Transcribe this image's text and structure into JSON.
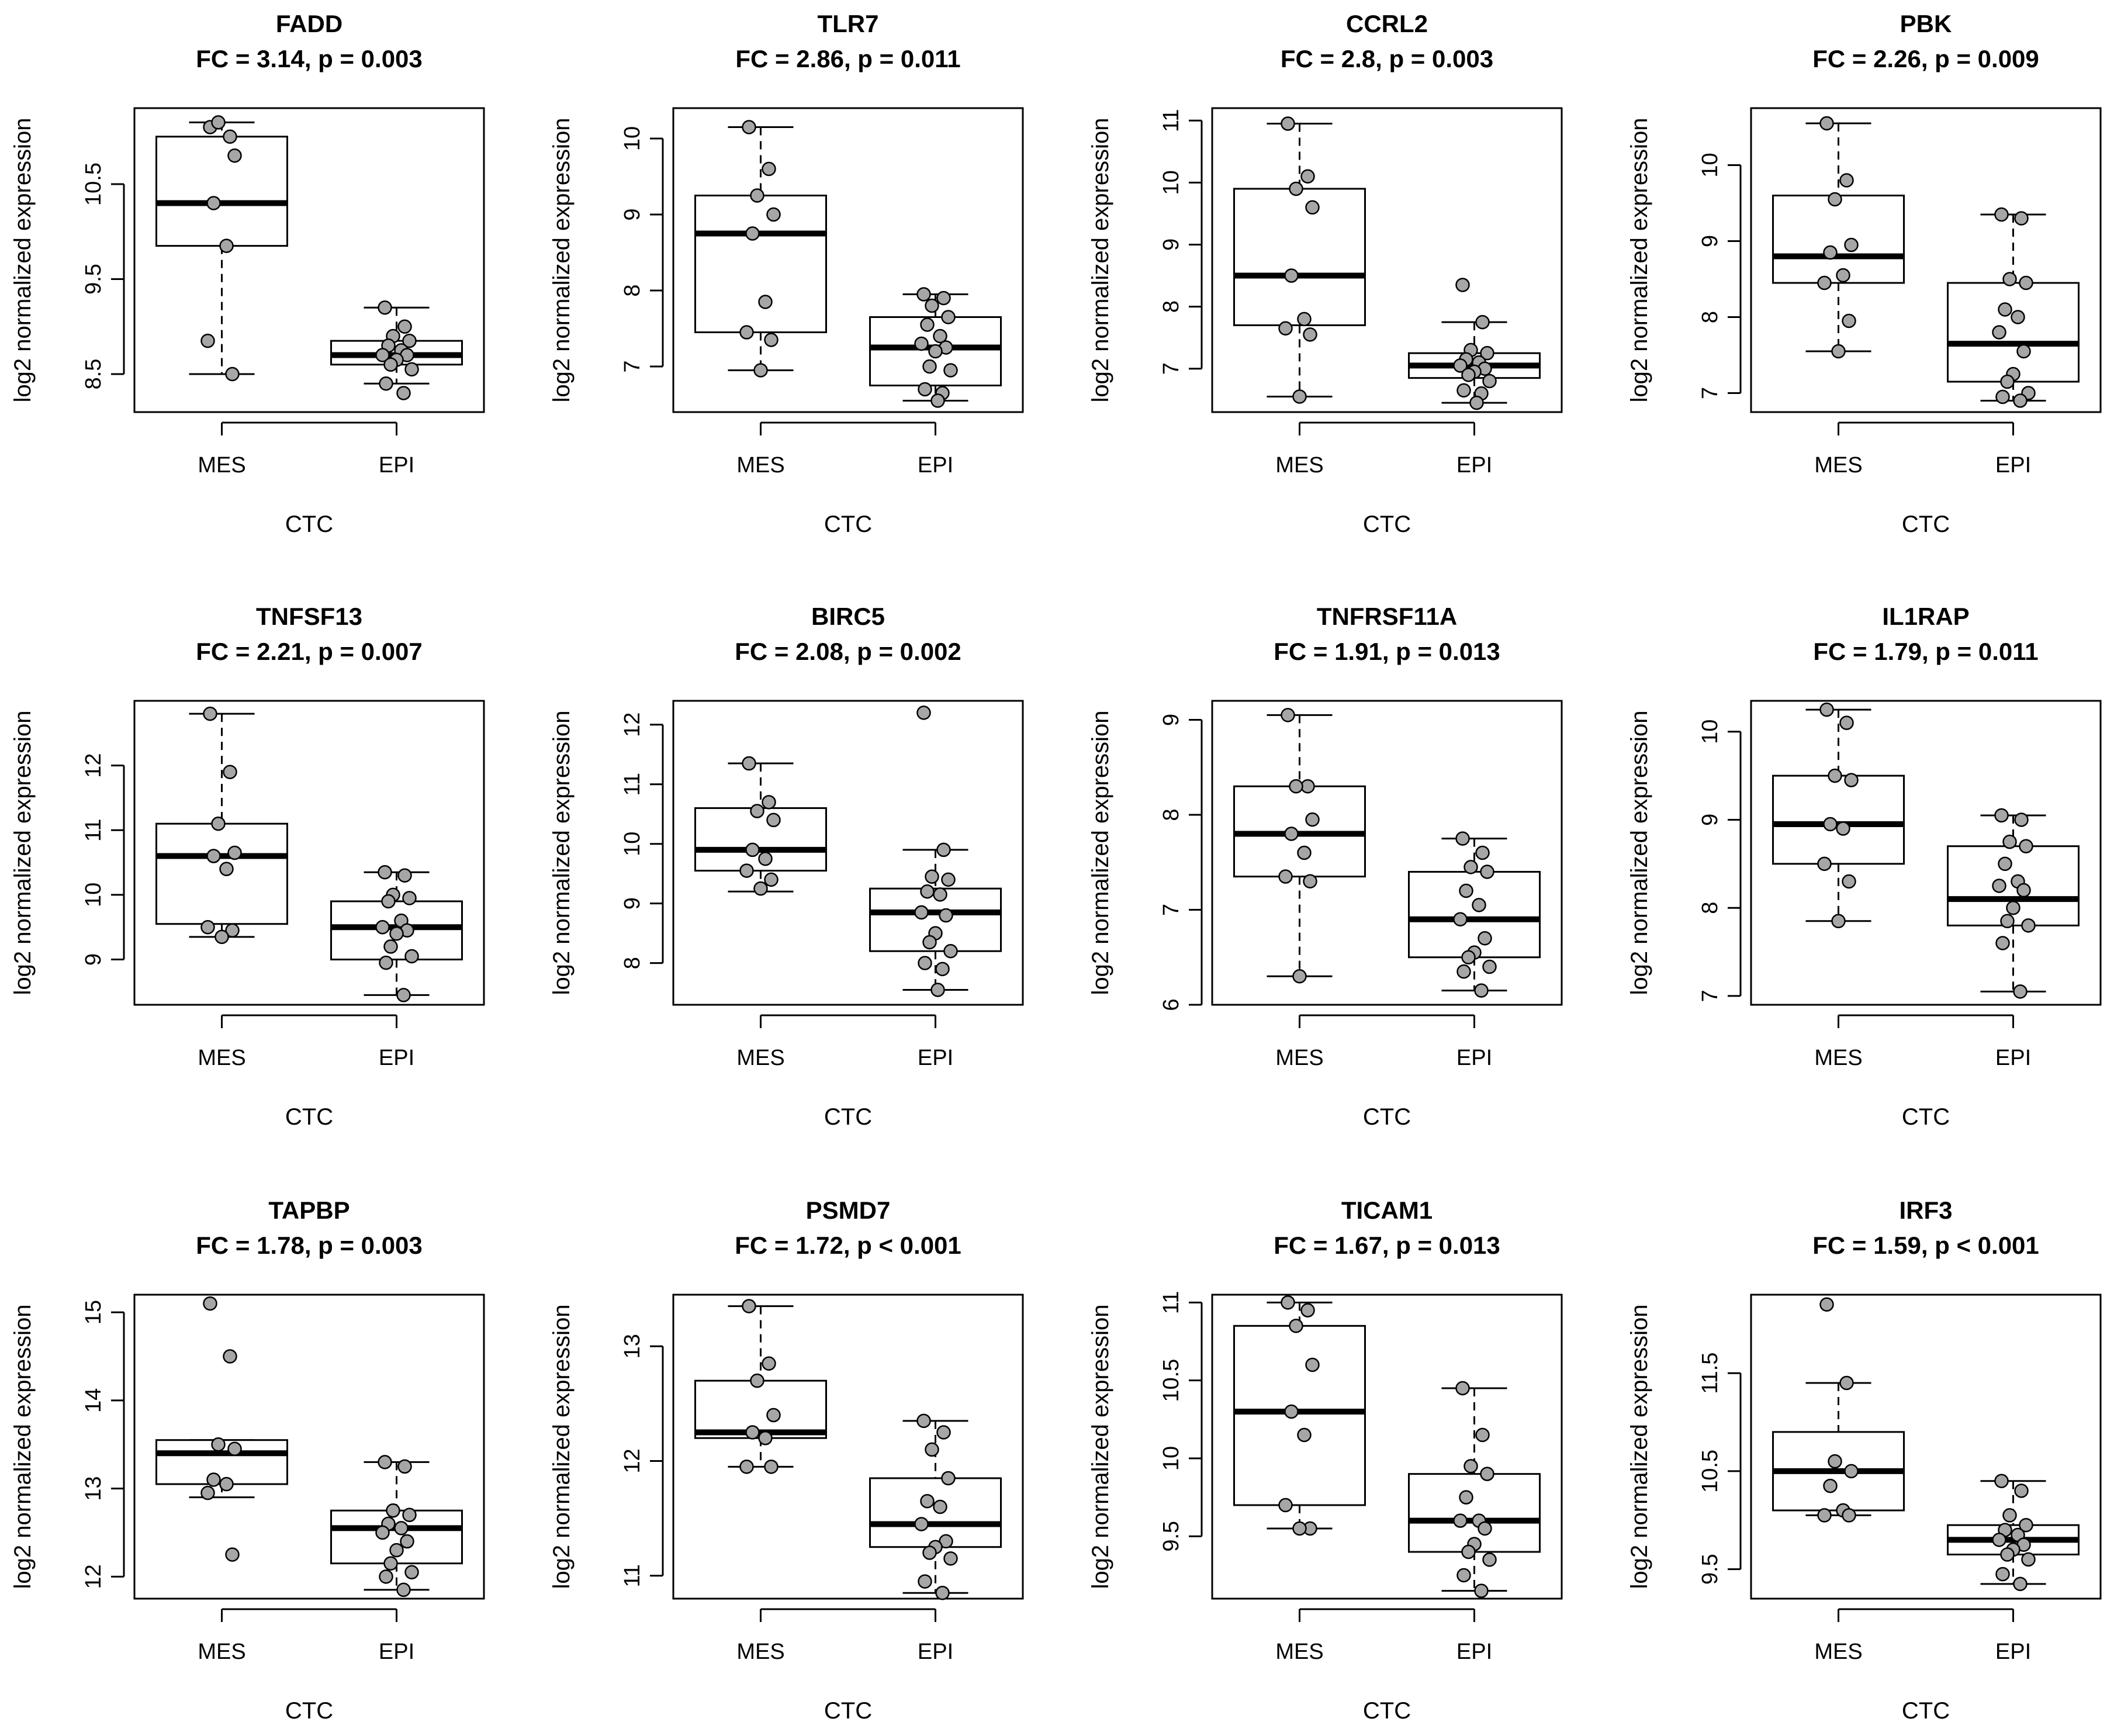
{
  "chart_data": [
    {
      "type": "box",
      "title": "FADD",
      "subtitle": "FC = 3.14, p = 0.003",
      "ylabel": "log2 normalized expression",
      "xlabel": "CTC",
      "categories": [
        "MES",
        "EPI"
      ],
      "ylim": [
        8.1,
        11.3
      ],
      "yticks": [
        8.5,
        9.5,
        10.5
      ],
      "boxes": [
        {
          "q1": 9.85,
          "median": 10.3,
          "q3": 11.0,
          "whisker_low": 8.5,
          "whisker_high": 11.15
        },
        {
          "q1": 8.6,
          "median": 8.7,
          "q3": 8.85,
          "whisker_low": 8.4,
          "whisker_high": 9.2
        }
      ],
      "points": [
        [
          11.1,
          11.0,
          11.15,
          10.8,
          10.3,
          9.85,
          8.85,
          8.5
        ],
        [
          9.2,
          9.0,
          8.9,
          8.85,
          8.8,
          8.75,
          8.7,
          8.7,
          8.65,
          8.6,
          8.55,
          8.4,
          8.3
        ]
      ]
    },
    {
      "type": "box",
      "title": "TLR7",
      "subtitle": "FC = 2.86, p = 0.011",
      "ylabel": "log2 normalized expression",
      "xlabel": "CTC",
      "categories": [
        "MES",
        "EPI"
      ],
      "ylim": [
        6.4,
        10.4
      ],
      "yticks": [
        7,
        8,
        9,
        10
      ],
      "boxes": [
        {
          "q1": 7.45,
          "median": 8.75,
          "q3": 9.25,
          "whisker_low": 6.95,
          "whisker_high": 10.15
        },
        {
          "q1": 6.75,
          "median": 7.25,
          "q3": 7.65,
          "whisker_low": 6.55,
          "whisker_high": 7.95
        }
      ],
      "points": [
        [
          10.15,
          9.6,
          9.25,
          9.0,
          8.75,
          7.85,
          7.45,
          7.35,
          6.95
        ],
        [
          7.95,
          7.9,
          7.8,
          7.65,
          7.55,
          7.4,
          7.3,
          7.25,
          7.2,
          7.0,
          6.95,
          6.7,
          6.65,
          6.55
        ]
      ]
    },
    {
      "type": "box",
      "title": "CCRL2",
      "subtitle": "FC = 2.8, p = 0.003",
      "ylabel": "log2 normalized expression",
      "xlabel": "CTC",
      "categories": [
        "MES",
        "EPI"
      ],
      "ylim": [
        6.3,
        11.2
      ],
      "yticks": [
        7,
        8,
        9,
        10,
        11
      ],
      "boxes": [
        {
          "q1": 7.7,
          "median": 8.5,
          "q3": 9.9,
          "whisker_low": 6.55,
          "whisker_high": 10.95
        },
        {
          "q1": 6.85,
          "median": 7.05,
          "q3": 7.25,
          "whisker_low": 6.45,
          "whisker_high": 7.75
        }
      ],
      "points": [
        [
          10.95,
          10.1,
          9.9,
          9.6,
          8.5,
          7.8,
          7.65,
          7.55,
          6.55
        ],
        [
          8.35,
          7.75,
          7.3,
          7.25,
          7.15,
          7.1,
          7.05,
          7.0,
          6.95,
          6.9,
          6.8,
          6.65,
          6.6,
          6.45
        ]
      ]
    },
    {
      "type": "box",
      "title": "PBK",
      "subtitle": "FC = 2.26, p = 0.009",
      "ylabel": "log2 normalized expression",
      "xlabel": "CTC",
      "categories": [
        "MES",
        "EPI"
      ],
      "ylim": [
        6.75,
        10.75
      ],
      "yticks": [
        7,
        8,
        9,
        10
      ],
      "boxes": [
        {
          "q1": 8.45,
          "median": 8.8,
          "q3": 9.6,
          "whisker_low": 7.55,
          "whisker_high": 10.55
        },
        {
          "q1": 7.15,
          "median": 7.65,
          "q3": 8.45,
          "whisker_low": 6.9,
          "whisker_high": 9.35
        }
      ],
      "points": [
        [
          10.55,
          9.8,
          9.55,
          8.95,
          8.85,
          8.55,
          8.45,
          7.95,
          7.55
        ],
        [
          9.35,
          9.3,
          8.5,
          8.45,
          8.1,
          8.0,
          7.8,
          7.55,
          7.25,
          7.15,
          7.0,
          6.95,
          6.9
        ]
      ]
    },
    {
      "type": "box",
      "title": "TNFSF13",
      "subtitle": "FC = 2.21, p = 0.007",
      "ylabel": "log2 normalized expression",
      "xlabel": "CTC",
      "categories": [
        "MES",
        "EPI"
      ],
      "ylim": [
        8.3,
        13.0
      ],
      "yticks": [
        9,
        10,
        11,
        12
      ],
      "boxes": [
        {
          "q1": 9.55,
          "median": 10.6,
          "q3": 11.1,
          "whisker_low": 9.35,
          "whisker_high": 12.8
        },
        {
          "q1": 9.0,
          "median": 9.5,
          "q3": 9.9,
          "whisker_low": 8.45,
          "whisker_high": 10.35
        }
      ],
      "points": [
        [
          12.8,
          11.9,
          11.1,
          10.65,
          10.6,
          10.4,
          9.5,
          9.45,
          9.35
        ],
        [
          10.35,
          10.3,
          10.0,
          9.95,
          9.9,
          9.6,
          9.5,
          9.45,
          9.4,
          9.2,
          9.05,
          8.95,
          8.45
        ]
      ]
    },
    {
      "type": "box",
      "title": "BIRC5",
      "subtitle": "FC = 2.08, p = 0.002",
      "ylabel": "log2 normalized expression",
      "xlabel": "CTC",
      "categories": [
        "MES",
        "EPI"
      ],
      "ylim": [
        7.3,
        12.4
      ],
      "yticks": [
        8,
        9,
        10,
        11,
        12
      ],
      "boxes": [
        {
          "q1": 9.55,
          "median": 9.9,
          "q3": 10.6,
          "whisker_low": 9.2,
          "whisker_high": 11.35
        },
        {
          "q1": 8.2,
          "median": 8.85,
          "q3": 9.25,
          "whisker_low": 7.55,
          "whisker_high": 9.9
        }
      ],
      "points": [
        [
          11.35,
          10.7,
          10.55,
          10.4,
          9.9,
          9.75,
          9.55,
          9.4,
          9.25
        ],
        [
          12.2,
          9.9,
          9.45,
          9.4,
          9.2,
          9.15,
          8.85,
          8.8,
          8.5,
          8.35,
          8.2,
          8.0,
          7.9,
          7.55
        ]
      ]
    },
    {
      "type": "box",
      "title": "TNFRSF11A",
      "subtitle": "FC = 1.91, p = 0.013",
      "ylabel": "log2 normalized expression",
      "xlabel": "CTC",
      "categories": [
        "MES",
        "EPI"
      ],
      "ylim": [
        6.0,
        9.2
      ],
      "yticks": [
        6.0,
        7.0,
        8.0,
        9.0
      ],
      "boxes": [
        {
          "q1": 7.35,
          "median": 7.8,
          "q3": 8.3,
          "whisker_low": 6.3,
          "whisker_high": 9.05
        },
        {
          "q1": 6.5,
          "median": 6.9,
          "q3": 7.4,
          "whisker_low": 6.15,
          "whisker_high": 7.75
        }
      ],
      "points": [
        [
          9.05,
          8.3,
          8.3,
          7.95,
          7.8,
          7.6,
          7.35,
          7.3,
          6.3
        ],
        [
          7.75,
          7.6,
          7.45,
          7.4,
          7.2,
          7.05,
          6.9,
          6.7,
          6.55,
          6.5,
          6.4,
          6.35,
          6.15
        ]
      ]
    },
    {
      "type": "box",
      "title": "IL1RAP",
      "subtitle": "FC = 1.79, p = 0.011",
      "ylabel": "log2 normalized expression",
      "xlabel": "CTC",
      "categories": [
        "MES",
        "EPI"
      ],
      "ylim": [
        6.9,
        10.35
      ],
      "yticks": [
        7.0,
        8.0,
        9.0,
        10.0
      ],
      "boxes": [
        {
          "q1": 8.5,
          "median": 8.95,
          "q3": 9.5,
          "whisker_low": 7.85,
          "whisker_high": 10.25
        },
        {
          "q1": 7.8,
          "median": 8.1,
          "q3": 8.7,
          "whisker_low": 7.05,
          "whisker_high": 9.05
        }
      ],
      "points": [
        [
          10.25,
          10.1,
          9.5,
          9.45,
          8.95,
          8.9,
          8.5,
          8.3,
          7.85
        ],
        [
          9.05,
          9.0,
          8.75,
          8.7,
          8.5,
          8.3,
          8.25,
          8.2,
          8.0,
          7.85,
          7.8,
          7.6,
          7.05
        ]
      ]
    },
    {
      "type": "box",
      "title": "TAPBP",
      "subtitle": "FC = 1.78, p = 0.003",
      "ylabel": "log2 normalized expression",
      "xlabel": "CTC",
      "categories": [
        "MES",
        "EPI"
      ],
      "ylim": [
        11.75,
        15.2
      ],
      "yticks": [
        12.0,
        13.0,
        14.0,
        15.0
      ],
      "boxes": [
        {
          "q1": 13.05,
          "median": 13.4,
          "q3": 13.55,
          "whisker_low": 12.9,
          "whisker_high": 13.55
        },
        {
          "q1": 12.15,
          "median": 12.55,
          "q3": 12.75,
          "whisker_low": 11.85,
          "whisker_high": 13.3
        }
      ],
      "points": [
        [
          15.1,
          14.5,
          13.5,
          13.45,
          13.1,
          13.05,
          12.95,
          12.25
        ],
        [
          13.3,
          13.25,
          12.75,
          12.7,
          12.6,
          12.55,
          12.5,
          12.4,
          12.3,
          12.15,
          12.05,
          12.0,
          11.85
        ]
      ]
    },
    {
      "type": "box",
      "title": "PSMD7",
      "subtitle": "FC = 1.72, p < 0.001",
      "ylabel": "log2 normalized expression",
      "xlabel": "CTC",
      "categories": [
        "MES",
        "EPI"
      ],
      "ylim": [
        10.8,
        13.45
      ],
      "yticks": [
        11.0,
        12.0,
        13.0
      ],
      "boxes": [
        {
          "q1": 12.2,
          "median": 12.25,
          "q3": 12.7,
          "whisker_low": 11.95,
          "whisker_high": 13.35
        },
        {
          "q1": 11.25,
          "median": 11.45,
          "q3": 11.85,
          "whisker_low": 10.85,
          "whisker_high": 12.35
        }
      ],
      "points": [
        [
          13.35,
          12.85,
          12.7,
          12.4,
          12.25,
          12.2,
          11.95,
          11.95
        ],
        [
          12.35,
          12.25,
          12.1,
          11.85,
          11.65,
          11.6,
          11.45,
          11.3,
          11.25,
          11.2,
          11.15,
          10.95,
          10.85
        ]
      ]
    },
    {
      "type": "box",
      "title": "TICAM1",
      "subtitle": "FC = 1.67, p = 0.013",
      "ylabel": "log2 normalized expression",
      "xlabel": "CTC",
      "categories": [
        "MES",
        "EPI"
      ],
      "ylim": [
        9.1,
        11.05
      ],
      "yticks": [
        9.5,
        10.0,
        10.5,
        11.0
      ],
      "boxes": [
        {
          "q1": 9.7,
          "median": 10.3,
          "q3": 10.85,
          "whisker_low": 9.55,
          "whisker_high": 11.0
        },
        {
          "q1": 9.4,
          "median": 9.6,
          "q3": 9.9,
          "whisker_low": 9.15,
          "whisker_high": 10.45
        }
      ],
      "points": [
        [
          11.0,
          10.95,
          10.85,
          10.6,
          10.3,
          10.15,
          9.7,
          9.55,
          9.55
        ],
        [
          10.45,
          10.15,
          9.95,
          9.9,
          9.75,
          9.6,
          9.6,
          9.55,
          9.45,
          9.4,
          9.35,
          9.25,
          9.15
        ]
      ]
    },
    {
      "type": "box",
      "title": "IRF3",
      "subtitle": "FC = 1.59, p < 0.001",
      "ylabel": "log2 normalized expression",
      "xlabel": "CTC",
      "categories": [
        "MES",
        "EPI"
      ],
      "ylim": [
        9.2,
        12.3
      ],
      "yticks": [
        9.5,
        10.5,
        11.5
      ],
      "boxes": [
        {
          "q1": 10.1,
          "median": 10.5,
          "q3": 10.9,
          "whisker_low": 10.05,
          "whisker_high": 11.4
        },
        {
          "q1": 9.65,
          "median": 9.8,
          "q3": 9.95,
          "whisker_low": 9.35,
          "whisker_high": 10.4
        }
      ],
      "points": [
        [
          12.2,
          11.4,
          10.6,
          10.5,
          10.35,
          10.1,
          10.05,
          10.05
        ],
        [
          10.4,
          10.3,
          10.05,
          9.95,
          9.9,
          9.85,
          9.8,
          9.75,
          9.7,
          9.65,
          9.6,
          9.45,
          9.35
        ]
      ]
    }
  ]
}
